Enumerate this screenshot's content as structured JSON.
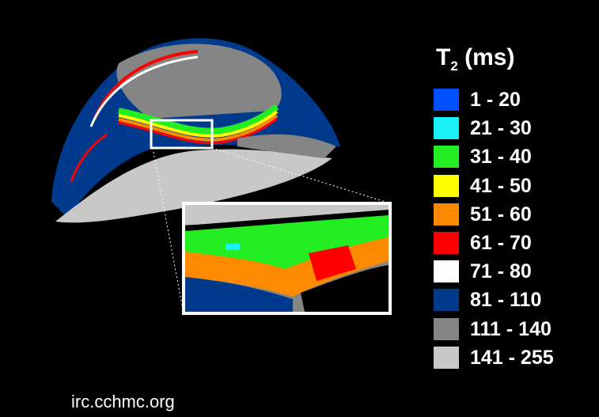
{
  "legend": {
    "title": "T",
    "title_subscript": "2",
    "title_unit": "(ms)",
    "items": [
      {
        "label": "1 - 20",
        "color": "#0050ff"
      },
      {
        "label": "21 - 30",
        "color": "#19f0f8"
      },
      {
        "label": "31 - 40",
        "color": "#22ee22"
      },
      {
        "label": "41 - 50",
        "color": "#ffff00"
      },
      {
        "label": "51 - 60",
        "color": "#ff8a00"
      },
      {
        "label": "61 - 70",
        "color": "#ff0000"
      },
      {
        "label": "71 - 80",
        "color": "#ffffff"
      },
      {
        "label": "81 - 110",
        "color": "#003a8c"
      },
      {
        "label": "111 - 140",
        "color": "#858585"
      },
      {
        "label": "141 - 255",
        "color": "#c8c8c8"
      }
    ]
  },
  "credit": "irc.cchmc.org"
}
